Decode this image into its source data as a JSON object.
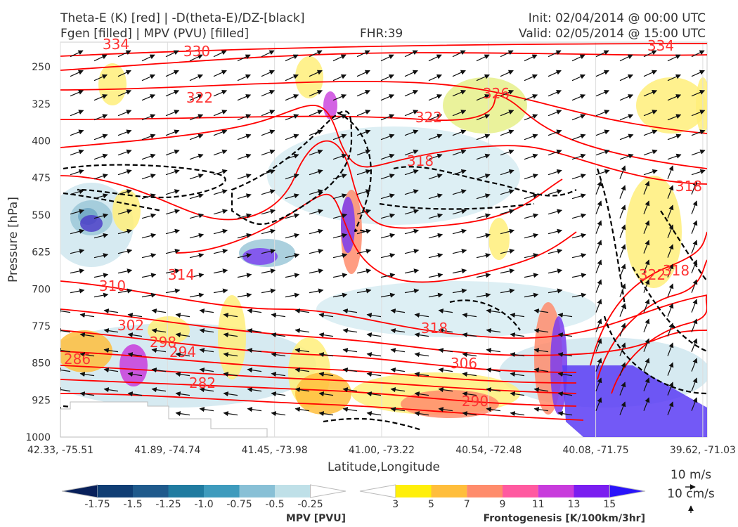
{
  "header": {
    "left_line1": "Theta-E (K) [red] | -D(theta-E)/DZ-[black]",
    "left_line2": "Fgen [filled] | MPV (PVU) [filled]",
    "center": "FHR:39",
    "right_line1": "Init: 02/04/2014 @ 00:00 UTC",
    "right_line2": "Valid: 02/05/2014 @ 15:00 UTC"
  },
  "chart_data": {
    "type": "cross-section",
    "xlabel": "Latitude,Longitude",
    "ylabel": "Pressure [hPa]",
    "x_ticks": [
      "42.33, -75.51",
      "41.89, -74.74",
      "41.45, -73.98",
      "41.00, -73.22",
      "40.54, -72.48",
      "40.08, -71.75",
      "39.62, -71.03"
    ],
    "y_ticks": [
      250,
      325,
      400,
      475,
      550,
      625,
      700,
      775,
      850,
      925,
      1000
    ],
    "ylim": [
      1000,
      200
    ],
    "contour_labels": [
      "334",
      "330",
      "322",
      "326",
      "322",
      "318",
      "334",
      "318",
      "314",
      "310",
      "302",
      "298",
      "294",
      "286",
      "318",
      "306",
      "282",
      "290",
      "322",
      "318"
    ],
    "colorbars": [
      {
        "label": "MPV [PVU]",
        "ticks": [
          "-1.75",
          "-1.5",
          "-1.25",
          "-1.0",
          "-0.75",
          "-0.5",
          "-0.25"
        ],
        "colors": [
          "#08205a",
          "#103e74",
          "#1f5a8c",
          "#207ba0",
          "#3e9bbd",
          "#88c0d6",
          "#bfe0e8",
          "#ffffff"
        ]
      },
      {
        "label": "Frontogenesis [K/100km/3hr]",
        "ticks": [
          "3",
          "5",
          "7",
          "9",
          "11",
          "13",
          "15"
        ],
        "colors": [
          "#ffffff",
          "#ffef0a",
          "#ffbe3c",
          "#ff8c6c",
          "#ff5aa0",
          "#c83cdc",
          "#7a1ef0",
          "#2a14fa"
        ]
      }
    ],
    "wind_key": {
      "horizontal": "10 m/s",
      "vertical": "10 cm/s"
    },
    "colors": {
      "theta_e": "#ff0000",
      "dthetae": "#000000"
    },
    "grid": true
  }
}
